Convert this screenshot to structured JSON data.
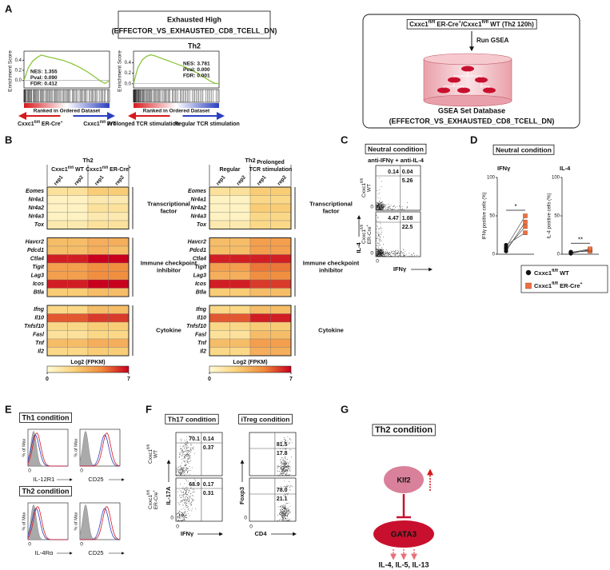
{
  "A": {
    "label": "A",
    "title": "Exhausted High",
    "subtitle": "(EFFECTOR_VS_EXHAUSTED_CD8_TCELL_DN)",
    "cell": "Th2",
    "gsea": [
      {
        "ylabel": "Enrichment Score",
        "ylim": [
          -0.15,
          0.58
        ],
        "yticks": [
          {
            "value": 0.4,
            "label": "0.4"
          },
          {
            "value": 0.2,
            "label": "0.2"
          },
          {
            "value": 0,
            "label": "0.0"
          }
        ],
        "stats": [
          "NES: 1.355",
          "Pval: 0.090",
          "FDR: 0.412"
        ],
        "xlabel": "Ranked in Ordered Dataset",
        "left": [
          "Cxxc1",
          "fl/fl",
          " ER-Cre",
          "+"
        ],
        "right": [
          "Cxxc1",
          "fl/fl",
          " WT"
        ],
        "es": [
          0,
          0.25,
          0.38,
          0.45,
          0.5,
          0.48,
          0.46,
          0.44,
          0.42,
          0.4,
          0.37,
          0.34,
          0.3,
          0.26,
          0.21,
          0.16,
          0.1,
          0.04,
          -0.02,
          -0.06,
          0
        ]
      },
      {
        "ylabel": "Enrichment Score",
        "ylim": [
          -0.08,
          0.62
        ],
        "yticks": [
          {
            "value": 0.4,
            "label": "0.4"
          },
          {
            "value": 0.2,
            "label": "0.2"
          },
          {
            "value": 0,
            "label": "0.0"
          }
        ],
        "stats": [
          "NES: 3.781",
          "Pval: 0.000",
          "FDR: 0.001"
        ],
        "xlabel": "Ranked in Ordered Dataset",
        "left": "Prolonged TCR stimulation",
        "right": "Regular TCR stimulation",
        "es": [
          0,
          0.3,
          0.45,
          0.52,
          0.55,
          0.53,
          0.5,
          0.47,
          0.44,
          0.41,
          0.38,
          0.35,
          0.32,
          0.28,
          0.24,
          0.2,
          0.15,
          0.1,
          0.05,
          0.01,
          0
        ]
      }
    ],
    "workflow": {
      "input": [
        "Cxxc1",
        "fl/fl",
        " ER-Cre",
        "+",
        "/Cxxc1",
        "fl/fl",
        " WT (Th2 120h)"
      ],
      "step": "Run GSEA",
      "db": "GSEA Set Database",
      "set": "(EFFECTOR_VS_EXHAUSTED_CD8_TCELL_DN)"
    }
  },
  "B": {
    "label": "B",
    "heatmaps": [
      {
        "title": "Th2",
        "groups": [
          [
            [
              "Cxxc1",
              "fl/fl",
              " WT"
            ]
          ],
          [
            [
              "Cxxc1",
              "fl/fl",
              " ER-Cre",
              "+"
            ]
          ]
        ],
        "columns": [
          "rep1",
          "rep2",
          "rep1",
          "rep2"
        ],
        "modules": [
          {
            "name": [
              "Transcriptional",
              "factor"
            ],
            "rows": [
              {
                "gene": "Eomes",
                "values": [
                  1.5,
                  1.5,
                  2.5,
                  2.5
                ]
              },
              {
                "gene": "Nr4a1",
                "values": [
                  0.5,
                  0.5,
                  1,
                  1
                ]
              },
              {
                "gene": "Nr4a2",
                "values": [
                  0.5,
                  0.5,
                  1.5,
                  1.5
                ]
              },
              {
                "gene": "Nr4a3",
                "values": [
                  0.5,
                  0.5,
                  1,
                  1
                ]
              },
              {
                "gene": "Tox",
                "values": [
                  1,
                  1,
                  1.5,
                  1.5
                ]
              }
            ]
          },
          {
            "name": [
              "Immune checkpoint",
              "inhibitor"
            ],
            "rows": [
              {
                "gene": "Havcr2",
                "values": [
                  3,
                  3,
                  3.5,
                  3.5
                ]
              },
              {
                "gene": "Pdcd1",
                "values": [
                  3,
                  3,
                  3.5,
                  3
                ]
              },
              {
                "gene": "Ctla4",
                "values": [
                  6.5,
                  6.5,
                  7,
                  7
                ]
              },
              {
                "gene": "Tigit",
                "values": [
                  4,
                  4,
                  4.5,
                  4.5
                ]
              },
              {
                "gene": "Lag3",
                "values": [
                  4,
                  4,
                  4.5,
                  4.5
                ]
              },
              {
                "gene": "Icos",
                "values": [
                  6.5,
                  6.5,
                  7,
                  7
                ]
              },
              {
                "gene": "Btla",
                "values": [
                  2.5,
                  2.5,
                  3,
                  3
                ]
              }
            ]
          },
          {
            "name": [
              "Cytokine"
            ],
            "rows": [
              {
                "gene": "Ifng",
                "values": [
                  2,
                  2,
                  3,
                  3
                ]
              },
              {
                "gene": "Il10",
                "values": [
                  5.5,
                  5.5,
                  6,
                  6
                ]
              },
              {
                "gene": "Tnfsf10",
                "values": [
                  2,
                  2,
                  2.5,
                  2.5
                ]
              },
              {
                "gene": "Fasl",
                "values": [
                  1.5,
                  1.5,
                  2,
                  2
                ]
              },
              {
                "gene": "Tnf",
                "values": [
                  3,
                  3,
                  3.5,
                  3.5
                ]
              },
              {
                "gene": "Il2",
                "values": [
                  2,
                  2,
                  2.5,
                  2.5
                ]
              }
            ]
          }
        ],
        "colorbar": {
          "label": "Log2 (FPKM)",
          "clim": [
            0,
            7
          ],
          "cticks": [
            0,
            7
          ],
          "colors": [
            "#fffbd6",
            "#f9d27a",
            "#f08a3c",
            "#c8001e"
          ]
        }
      },
      {
        "title": "Th2",
        "groups": [
          [
            "Regular"
          ],
          [
            "Prolonged",
            "TCR stimulation"
          ]
        ],
        "columns": [
          "rep1",
          "rep2",
          "rep1",
          "rep2"
        ],
        "modules": [
          {
            "name": [
              "Transcriptional",
              "factor"
            ],
            "rows": [
              {
                "gene": "Eomes",
                "values": [
                  1.5,
                  1.5,
                  2.5,
                  2.5
                ]
              },
              {
                "gene": "Nr4a1",
                "values": [
                  0.5,
                  0.5,
                  2,
                  2
                ]
              },
              {
                "gene": "Nr4a2",
                "values": [
                  0.5,
                  0.5,
                  2.5,
                  2.5
                ]
              },
              {
                "gene": "Nr4a3",
                "values": [
                  0.5,
                  0.5,
                  2,
                  2
                ]
              },
              {
                "gene": "Tox",
                "values": [
                  1,
                  1,
                  2,
                  2
                ]
              }
            ]
          },
          {
            "name": [
              "Immune checkpoint",
              "inhibitor"
            ],
            "rows": [
              {
                "gene": "Havcr2",
                "values": [
                  3,
                  3,
                  4,
                  4
                ]
              },
              {
                "gene": "Pdcd1",
                "values": [
                  3,
                  3,
                  4,
                  4
                ]
              },
              {
                "gene": "Ctla4",
                "values": [
                  6.5,
                  6.5,
                  6.5,
                  6.5
                ]
              },
              {
                "gene": "Tigit",
                "values": [
                  4,
                  4,
                  5,
                  5
                ]
              },
              {
                "gene": "Lag3",
                "values": [
                  3.5,
                  3.5,
                  4.5,
                  4.5
                ]
              },
              {
                "gene": "Icos",
                "values": [
                  6.5,
                  6.5,
                  6,
                  6
                ]
              },
              {
                "gene": "Btla",
                "values": [
                  2.5,
                  2.5,
                  3,
                  3
                ]
              }
            ]
          },
          {
            "name": [
              "Cytokine"
            ],
            "rows": [
              {
                "gene": "Ifng",
                "values": [
                  2,
                  2,
                  3,
                  3
                ]
              },
              {
                "gene": "Il10",
                "values": [
                  5.5,
                  5.5,
                  6.5,
                  6.5
                ]
              },
              {
                "gene": "Tnfsf10",
                "values": [
                  2,
                  2,
                  2.5,
                  2.5
                ]
              },
              {
                "gene": "Fasl",
                "values": [
                  1.5,
                  1.5,
                  3,
                  3
                ]
              },
              {
                "gene": "Tnf",
                "values": [
                  3,
                  3,
                  4,
                  4
                ]
              },
              {
                "gene": "Il2",
                "values": [
                  2,
                  2,
                  3.5,
                  3.5
                ]
              }
            ]
          }
        ],
        "colorbar": {
          "label": "Log2 (FPKM)",
          "clim": [
            0,
            7
          ],
          "cticks": [
            0,
            7
          ],
          "colors": [
            "#fffbd6",
            "#f9d27a",
            "#f08a3c",
            "#c8001e"
          ]
        }
      }
    ]
  },
  "C": {
    "label": "C",
    "condition": "Neutral condition",
    "treatment": "anti-IFNγ + anti-IL-4",
    "ylabel": "IL-4",
    "xlabel": "IFNγ",
    "zero": "0",
    "rows": [
      {
        "name": [
          [
            "Cxxc1",
            "fl/fl"
          ],
          "WT"
        ],
        "quadrants": [
          "0.14",
          "0.04",
          "5.26"
        ]
      },
      {
        "name": [
          [
            "Cxxc1",
            "fl/fl"
          ],
          [
            "ER-Cre",
            "+"
          ]
        ],
        "quadrants": [
          "4.47",
          "1.08",
          "22.5"
        ]
      }
    ]
  },
  "D": {
    "label": "D",
    "condition": "Neutral condition",
    "series": [
      {
        "name": [
          "Cxxc1",
          "fl/fl",
          " WT"
        ],
        "color": "#111111"
      },
      {
        "name": [
          "Cxxc1",
          "fl/fl",
          " ER-Cre",
          "+"
        ],
        "color": "#ee7040"
      }
    ],
    "plots": [
      {
        "title": "IFNγ",
        "ylabel": "IFNγ positive cells (%)",
        "ylim": [
          0,
          100
        ],
        "yticks": [
          0,
          50,
          100
        ],
        "sig": "*",
        "values": [
          [
            4,
            7,
            12,
            9
          ],
          [
            42,
            36,
            28,
            50
          ]
        ]
      },
      {
        "title": "IL-4",
        "ylabel": "IL-4 positive cells (%)",
        "ylim": [
          0,
          100
        ],
        "yticks": [
          0,
          50,
          100
        ],
        "sig": "**",
        "values": [
          [
            2,
            3,
            1,
            2
          ],
          [
            5,
            4,
            6,
            7
          ]
        ]
      }
    ]
  },
  "E": {
    "label": "E",
    "conditions": [
      {
        "name": "Th1 condition",
        "ylabel": "% of Max",
        "zero": "0",
        "markers": [
          "IL-12R1",
          "CD25"
        ]
      },
      {
        "name": "Th2 condition",
        "ylabel": "% of Max",
        "zero": "0",
        "markers": [
          "IL-4Rα",
          "CD25"
        ]
      }
    ]
  },
  "F": {
    "label": "F",
    "zero": "0",
    "rownames": [
      [
        [
          "Cxxc1",
          "fl/fl"
        ],
        "WT"
      ],
      [
        [
          "Cxxc1",
          "fl/fl"
        ],
        [
          "ER-Cre",
          "+"
        ]
      ]
    ],
    "panels": [
      {
        "name": "Th17 condition",
        "ylabel": "IL-17A",
        "xlabel": "IFNγ",
        "rows": [
          [
            "70.1",
            "0.14",
            "0.37"
          ],
          [
            "68.9",
            "0.17",
            "0.31"
          ]
        ]
      },
      {
        "name": "iTreg condition",
        "ylabel": "Foxp3",
        "xlabel": "CD4",
        "rows": [
          [
            "81.5",
            "17.8"
          ],
          [
            "78.0",
            "21.1"
          ]
        ]
      }
    ]
  },
  "G": {
    "label": "G",
    "condition": "Th2 condition",
    "nodes": [
      "Klf2",
      "GATA3"
    ],
    "output": "IL-4, IL-5, IL-13"
  }
}
